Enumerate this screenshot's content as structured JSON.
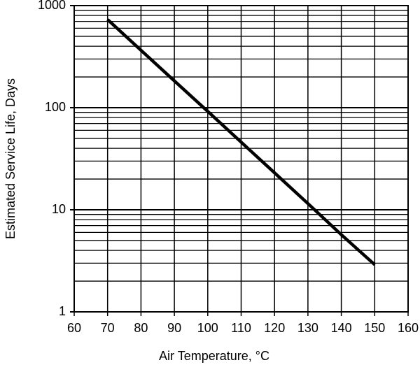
{
  "chart_data": {
    "type": "line",
    "x_label": "Air Temperature, °C",
    "y_label": "Estimated Service Life, Days",
    "x": [
      70,
      80,
      90,
      100,
      110,
      120,
      130,
      140,
      150
    ],
    "series": [
      {
        "name": null,
        "color": "#000000",
        "values": [
          730,
          365,
          183,
          92,
          46,
          23,
          11.5,
          5.7,
          2.9
        ]
      }
    ],
    "xlim": [
      60,
      160
    ],
    "xticks": [
      60,
      70,
      80,
      90,
      100,
      110,
      120,
      130,
      140,
      150,
      160
    ],
    "ylim": [
      1,
      1000
    ],
    "yticks": [
      1,
      10,
      100,
      1000
    ],
    "y_minor_ticks": [
      2,
      3,
      4,
      5,
      6,
      7,
      8,
      9,
      20,
      30,
      40,
      50,
      60,
      70,
      80,
      90,
      200,
      300,
      400,
      500,
      600,
      700,
      800,
      900
    ],
    "y_log": true,
    "grid": true
  }
}
